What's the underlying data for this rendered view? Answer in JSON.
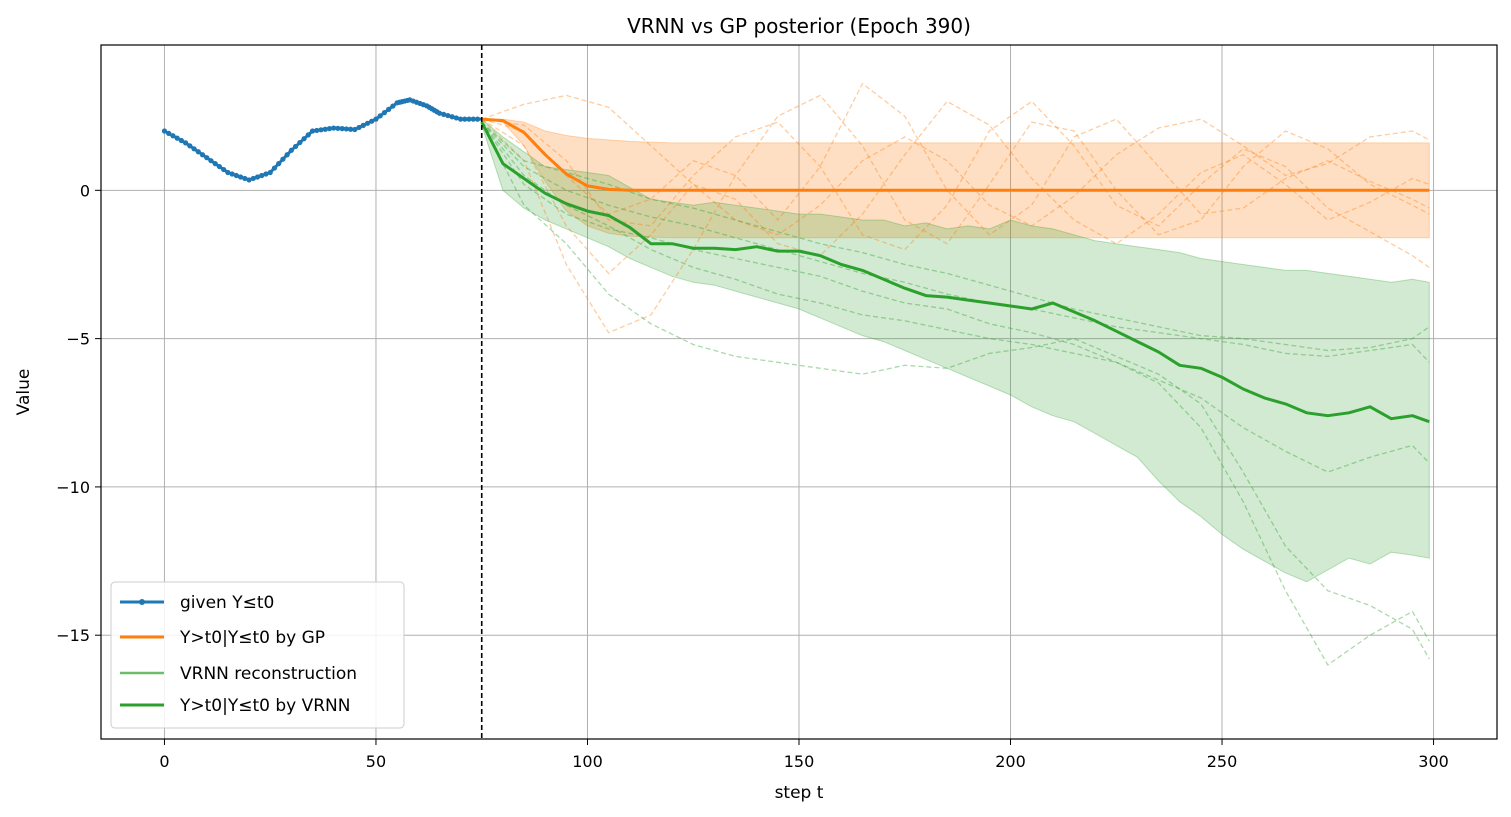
{
  "chart_data": {
    "type": "line",
    "title": "VRNN vs GP posterior (Epoch 390)",
    "xlabel": "step t",
    "ylabel": "Value",
    "xlim": [
      -15,
      315
    ],
    "ylim": [
      -18.5,
      4.9
    ],
    "xticks": [
      0,
      50,
      100,
      150,
      200,
      250,
      300
    ],
    "yticks": [
      0,
      -5,
      -10,
      -15
    ],
    "ytick_labels": [
      "0",
      "−5",
      "−10",
      "−15"
    ],
    "grid": true,
    "t0": 75,
    "legend_position": "lower-left",
    "colors": {
      "given": "#1f77b4",
      "gp": "#ff7f0e",
      "vrnn": "#2ca02c",
      "vrnn_recon": "#2ca02c",
      "t0_line": "#000000"
    },
    "series": [
      {
        "key": "given",
        "name": "given Y≤t0",
        "x": [
          0,
          5,
          10,
          15,
          20,
          25,
          30,
          35,
          40,
          45,
          50,
          55,
          58,
          62,
          65,
          70,
          75
        ],
        "y": [
          2.0,
          1.6,
          1.1,
          0.6,
          0.35,
          0.6,
          1.35,
          2.0,
          2.1,
          2.05,
          2.4,
          2.95,
          3.05,
          2.85,
          2.6,
          2.4,
          2.4
        ]
      },
      {
        "key": "gp",
        "name": "Y>t0|Y≤t0 by GP",
        "x": [
          75,
          80,
          85,
          90,
          95,
          100,
          105,
          110,
          120,
          150,
          200,
          250,
          299
        ],
        "y": [
          2.4,
          2.35,
          1.95,
          1.2,
          0.55,
          0.15,
          0.03,
          0.0,
          0.0,
          0.0,
          0.0,
          0.0,
          0.0
        ],
        "band_upper": [
          2.4,
          2.4,
          2.3,
          2.0,
          1.85,
          1.75,
          1.7,
          1.65,
          1.6,
          1.6,
          1.6,
          1.6,
          1.6
        ],
        "band_lower": [
          2.4,
          2.3,
          1.5,
          0.3,
          -0.7,
          -1.2,
          -1.45,
          -1.55,
          -1.6,
          -1.6,
          -1.6,
          -1.6,
          -1.6
        ]
      },
      {
        "key": "vrnn_recon",
        "name": "VRNN reconstruction"
      },
      {
        "key": "vrnn",
        "name": "Y>t0|Y≤t0 by VRNN",
        "x": [
          75,
          80,
          85,
          90,
          95,
          100,
          105,
          110,
          115,
          120,
          125,
          130,
          135,
          140,
          145,
          150,
          155,
          160,
          165,
          170,
          175,
          180,
          185,
          190,
          195,
          200,
          205,
          210,
          215,
          220,
          225,
          230,
          235,
          240,
          245,
          250,
          255,
          260,
          265,
          270,
          275,
          280,
          285,
          290,
          295,
          299
        ],
        "y": [
          2.3,
          0.9,
          0.4,
          -0.1,
          -0.45,
          -0.7,
          -0.85,
          -1.25,
          -1.8,
          -1.8,
          -1.95,
          -1.95,
          -2.0,
          -1.9,
          -2.05,
          -2.05,
          -2.2,
          -2.5,
          -2.7,
          -3.0,
          -3.3,
          -3.55,
          -3.6,
          -3.7,
          -3.8,
          -3.9,
          -4.0,
          -3.8,
          -4.1,
          -4.4,
          -4.75,
          -5.1,
          -5.45,
          -5.9,
          -6.0,
          -6.3,
          -6.7,
          -7.0,
          -7.2,
          -7.5,
          -7.6,
          -7.5,
          -7.3,
          -7.7,
          -7.6,
          -7.8
        ],
        "band_upper": [
          2.4,
          1.8,
          1.3,
          0.8,
          0.7,
          0.6,
          0.5,
          0.1,
          -0.3,
          -0.4,
          -0.5,
          -0.4,
          -0.5,
          -0.6,
          -0.7,
          -0.8,
          -0.8,
          -0.9,
          -1.0,
          -1.0,
          -1.2,
          -1.1,
          -1.3,
          -1.2,
          -1.3,
          -1.0,
          -1.2,
          -1.3,
          -1.5,
          -1.7,
          -1.8,
          -1.9,
          -2.0,
          -2.1,
          -2.3,
          -2.4,
          -2.5,
          -2.6,
          -2.7,
          -2.7,
          -2.8,
          -2.9,
          -3.0,
          -3.1,
          -3.0,
          -3.1
        ],
        "band_lower": [
          2.2,
          0.0,
          -0.6,
          -1.0,
          -1.3,
          -1.6,
          -1.9,
          -2.3,
          -2.6,
          -2.9,
          -3.1,
          -3.2,
          -3.4,
          -3.6,
          -3.8,
          -4.0,
          -4.3,
          -4.6,
          -4.9,
          -5.1,
          -5.4,
          -5.7,
          -6.0,
          -6.3,
          -6.6,
          -6.9,
          -7.3,
          -7.6,
          -7.8,
          -8.2,
          -8.6,
          -9.0,
          -9.8,
          -10.5,
          -11.0,
          -11.6,
          -12.1,
          -12.5,
          -12.9,
          -13.2,
          -12.8,
          -12.4,
          -12.6,
          -12.2,
          -12.3,
          -12.4
        ]
      }
    ],
    "gp_samples": [
      {
        "x": [
          75,
          85,
          95,
          105,
          115,
          125,
          135,
          145,
          155,
          165,
          175,
          185,
          195,
          205,
          215,
          225,
          235,
          245,
          255,
          265,
          275,
          285,
          295,
          299
        ],
        "y": [
          2.4,
          2.9,
          3.2,
          2.8,
          1.5,
          0.2,
          -1.0,
          -1.5,
          -0.5,
          1.0,
          1.8,
          1.0,
          -0.5,
          -1.2,
          -0.2,
          1.2,
          2.1,
          2.4,
          1.5,
          0.5,
          0.9,
          1.8,
          2.0,
          1.7
        ]
      },
      {
        "x": [
          75,
          85,
          95,
          105,
          115,
          125,
          135,
          145,
          155,
          165,
          175,
          185,
          195,
          205,
          215,
          225,
          235,
          245,
          255,
          265,
          275,
          285,
          295,
          299
        ],
        "y": [
          2.4,
          1.0,
          -2.5,
          -4.8,
          -4.2,
          -2.0,
          0.5,
          2.5,
          3.2,
          1.5,
          -1.0,
          -1.8,
          0.2,
          2.3,
          2.0,
          0.0,
          -1.5,
          -1.0,
          0.8,
          2.0,
          1.4,
          0.2,
          -0.5,
          -0.8
        ]
      },
      {
        "x": [
          75,
          85,
          95,
          105,
          115,
          125,
          135,
          145,
          155,
          165,
          175,
          185,
          195,
          205,
          215,
          225,
          235,
          245,
          255,
          265,
          275,
          285,
          295,
          299
        ],
        "y": [
          2.4,
          2.2,
          1.0,
          -1.0,
          -1.2,
          0.5,
          1.8,
          2.3,
          0.8,
          -1.5,
          -2.0,
          -0.5,
          2.0,
          3.0,
          1.5,
          -0.5,
          -1.2,
          0.2,
          1.4,
          0.8,
          -0.6,
          -1.4,
          -2.2,
          -2.6
        ]
      },
      {
        "x": [
          75,
          85,
          95,
          105,
          115,
          125,
          135,
          145,
          155,
          165,
          175,
          185,
          195,
          205,
          215,
          225,
          235,
          245,
          255,
          265,
          275,
          285,
          295,
          299
        ],
        "y": [
          2.4,
          2.0,
          0.5,
          -0.8,
          -0.3,
          1.0,
          0.5,
          -1.0,
          0.8,
          3.6,
          2.5,
          0.0,
          -1.5,
          -0.5,
          1.8,
          2.4,
          0.8,
          -0.8,
          -0.6,
          0.4,
          1.0,
          0.3,
          -0.3,
          -0.6
        ]
      },
      {
        "x": [
          75,
          85,
          95,
          105,
          115,
          125,
          135,
          145,
          155,
          165,
          175,
          185,
          195,
          205,
          215,
          225,
          235,
          245,
          255,
          265,
          275,
          285,
          295,
          299
        ],
        "y": [
          2.4,
          1.5,
          -1.2,
          -2.8,
          -1.5,
          0.2,
          -0.3,
          -1.8,
          -2.2,
          -0.8,
          1.2,
          3.0,
          2.2,
          0.4,
          -1.0,
          -1.8,
          -0.8,
          0.6,
          1.2,
          0.2,
          -1.0,
          -0.4,
          0.4,
          0.2
        ]
      }
    ],
    "vrnn_samples": [
      {
        "x": [
          75,
          85,
          95,
          105,
          115,
          125,
          135,
          145,
          155,
          165,
          175,
          185,
          195,
          205,
          215,
          225,
          235,
          245,
          255,
          265,
          275,
          285,
          295,
          299
        ],
        "y": [
          2.3,
          -0.5,
          -1.8,
          -3.5,
          -4.5,
          -5.2,
          -5.6,
          -5.8,
          -6.0,
          -6.2,
          -5.9,
          -6.0,
          -5.5,
          -5.3,
          -5.0,
          -5.6,
          -6.2,
          -7.2,
          -9.5,
          -12.0,
          -13.5,
          -14.0,
          -14.8,
          -15.8
        ]
      },
      {
        "x": [
          75,
          85,
          95,
          105,
          115,
          125,
          135,
          145,
          155,
          165,
          175,
          185,
          195,
          205,
          215,
          225,
          235,
          245,
          255,
          265,
          275,
          285,
          295,
          299
        ],
        "y": [
          2.3,
          0.2,
          -0.8,
          -1.3,
          -1.6,
          -2.0,
          -2.3,
          -2.6,
          -2.9,
          -3.4,
          -3.8,
          -4.0,
          -4.5,
          -4.8,
          -5.2,
          -5.8,
          -6.5,
          -8.0,
          -10.5,
          -13.5,
          -16.0,
          -15.0,
          -14.2,
          -15.2
        ]
      },
      {
        "x": [
          75,
          85,
          95,
          105,
          115,
          125,
          135,
          145,
          155,
          165,
          175,
          185,
          195,
          205,
          215,
          225,
          235,
          245,
          255,
          265,
          275,
          285,
          295,
          299
        ],
        "y": [
          2.3,
          1.0,
          0.6,
          0.2,
          -0.3,
          -0.6,
          -1.0,
          -1.4,
          -1.8,
          -2.1,
          -2.5,
          -2.8,
          -3.2,
          -3.6,
          -4.0,
          -4.3,
          -4.6,
          -4.9,
          -5.0,
          -5.2,
          -5.4,
          -5.3,
          -5.0,
          -4.6
        ]
      },
      {
        "x": [
          75,
          85,
          95,
          105,
          115,
          125,
          135,
          145,
          155,
          165,
          175,
          185,
          195,
          205,
          215,
          225,
          235,
          245,
          255,
          265,
          275,
          285,
          295,
          299
        ],
        "y": [
          2.3,
          0.5,
          -0.5,
          -1.2,
          -2.0,
          -2.6,
          -3.0,
          -3.5,
          -3.8,
          -4.2,
          -4.4,
          -4.7,
          -5.0,
          -5.2,
          -5.5,
          -5.8,
          -6.4,
          -7.0,
          -8.0,
          -8.8,
          -9.5,
          -9.0,
          -8.6,
          -9.2
        ]
      },
      {
        "x": [
          75,
          85,
          95,
          105,
          115,
          125,
          135,
          145,
          155,
          165,
          175,
          185,
          195,
          205,
          215,
          225,
          235,
          245,
          255,
          265,
          275,
          285,
          295,
          299
        ],
        "y": [
          2.3,
          0.8,
          0.0,
          -0.5,
          -0.9,
          -1.2,
          -1.6,
          -2.0,
          -2.4,
          -2.8,
          -3.1,
          -3.5,
          -3.8,
          -4.0,
          -4.3,
          -4.6,
          -4.8,
          -5.0,
          -5.2,
          -5.5,
          -5.6,
          -5.4,
          -5.2,
          -5.8
        ]
      }
    ]
  }
}
